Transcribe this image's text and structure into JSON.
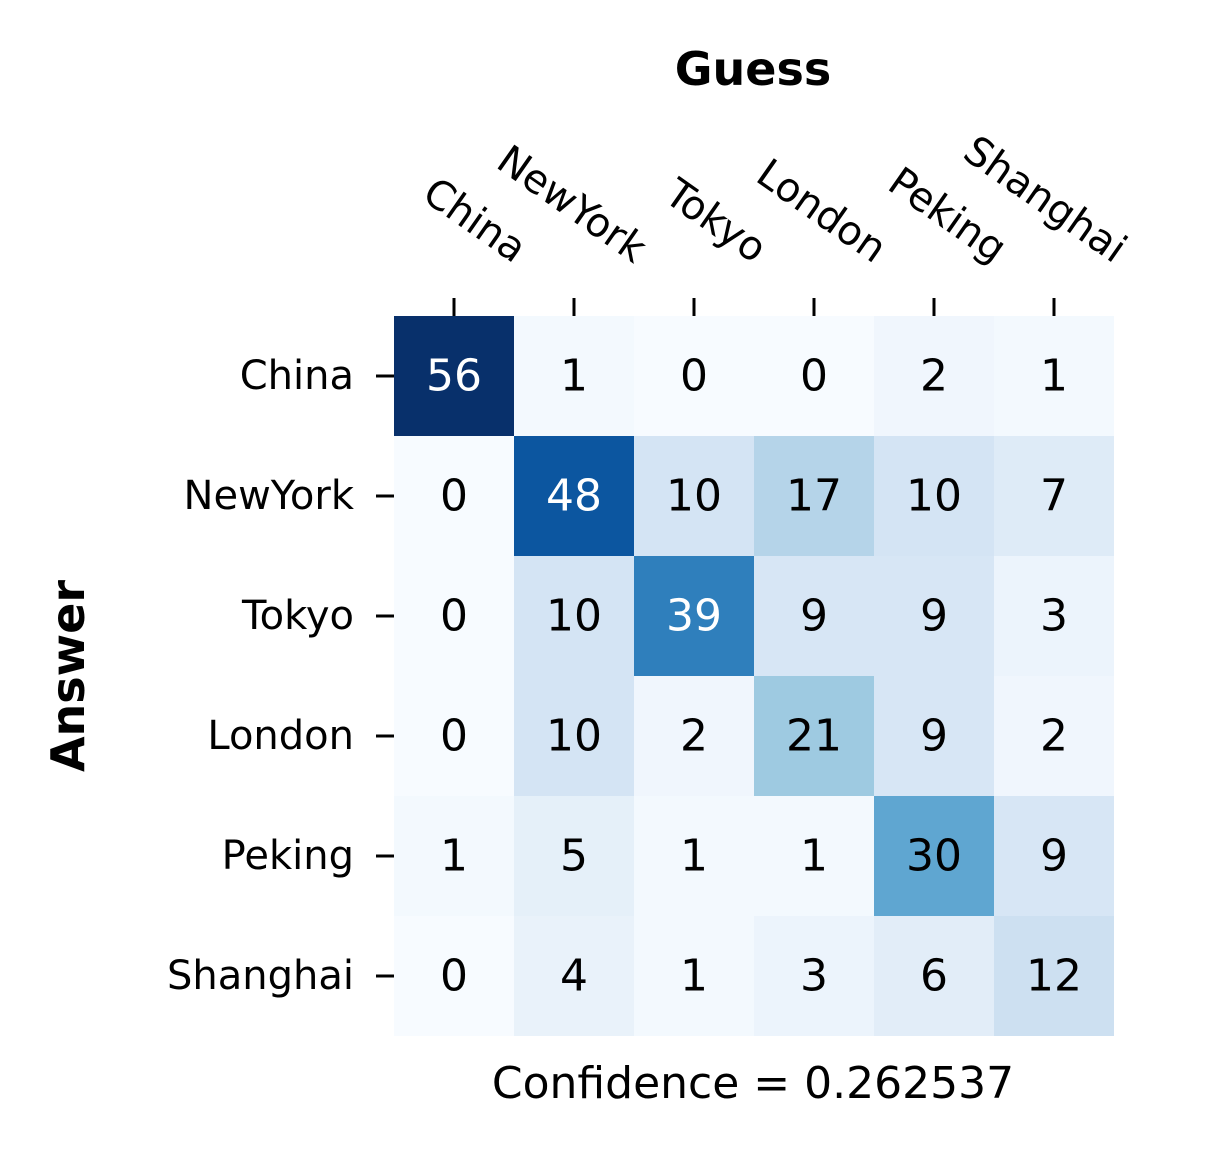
{
  "chart_data": {
    "type": "heatmap",
    "title": "Guess",
    "xlabel": "Confidence = 0.262537",
    "ylabel": "Answer",
    "x_categories": [
      "China",
      "NewYork",
      "Tokyo",
      "London",
      "Peking",
      "Shanghai"
    ],
    "y_categories": [
      "China",
      "NewYork",
      "Tokyo",
      "London",
      "Peking",
      "Shanghai"
    ],
    "values": [
      [
        56,
        1,
        0,
        0,
        2,
        1
      ],
      [
        0,
        48,
        10,
        17,
        10,
        7
      ],
      [
        0,
        10,
        39,
        9,
        9,
        3
      ],
      [
        0,
        10,
        2,
        21,
        9,
        2
      ],
      [
        1,
        5,
        1,
        1,
        30,
        9
      ],
      [
        0,
        4,
        1,
        3,
        6,
        12
      ]
    ],
    "vmin": 0,
    "vmax": 56,
    "colormap": "Blues",
    "colorbar": false,
    "x_tick_position": "top",
    "annotation_dark_color": "#000000",
    "annotation_light_color": "#ffffff"
  }
}
